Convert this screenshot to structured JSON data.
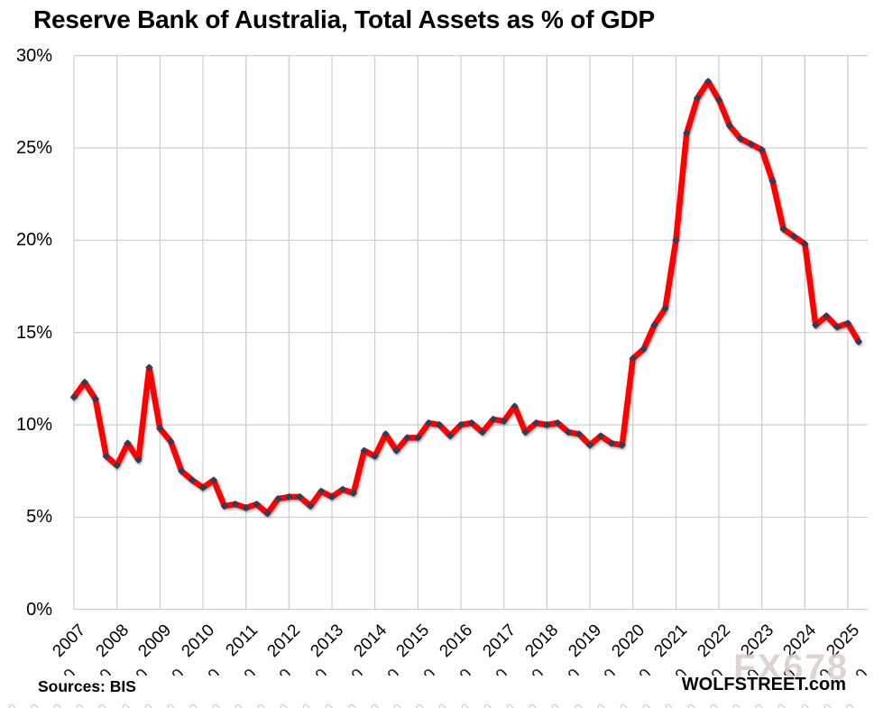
{
  "title": "Reserve Bank of Australia, Total Assets as % of GDP",
  "footer": {
    "sources": "Sources: BIS",
    "brand": "WOLFSTREET.com"
  },
  "watermark": "FX678",
  "colors": {
    "line": "#FE0000",
    "marker": "#2D3E58",
    "grid": "#C9C9C9",
    "text": "#000000",
    "watermark": "#D9CEC8"
  },
  "y_axis": {
    "min": 0,
    "max": 30,
    "ticks": [
      {
        "label": "30%",
        "value": 30
      },
      {
        "label": "25%",
        "value": 25
      },
      {
        "label": "20%",
        "value": 20
      },
      {
        "label": "15%",
        "value": 15
      },
      {
        "label": "10%",
        "value": 10
      },
      {
        "label": "5%",
        "value": 5
      },
      {
        "label": "0%",
        "value": 0
      }
    ]
  },
  "x_axis": {
    "years": [
      2007,
      2008,
      2009,
      2010,
      2011,
      2012,
      2013,
      2014,
      2015,
      2016,
      2017,
      2018,
      2019,
      2020,
      2021,
      2022,
      2023,
      2024,
      2025
    ]
  },
  "chart_data": {
    "type": "line",
    "title": "Reserve Bank of Australia, Total Assets as % of GDP",
    "frequency": "quarterly",
    "x_start": "2007-Q1",
    "x_end": "2025-Q2",
    "unit": "% of GDP",
    "ylim": [
      0,
      30
    ],
    "grid": true,
    "legend": "none",
    "series": [
      {
        "name": "RBA Total Assets as % of GDP",
        "color": "#FE0000",
        "marker": "diamond",
        "marker_color": "#2D3E58",
        "values": [
          11.5,
          12.3,
          11.4,
          8.3,
          7.8,
          9.0,
          8.1,
          13.1,
          9.8,
          9.1,
          7.5,
          7.0,
          6.6,
          7.0,
          5.6,
          5.7,
          5.5,
          5.7,
          5.2,
          6.0,
          6.1,
          6.1,
          5.6,
          6.4,
          6.1,
          6.5,
          6.3,
          8.6,
          8.3,
          9.5,
          8.6,
          9.3,
          9.3,
          10.1,
          10.0,
          9.4,
          10.0,
          10.1,
          9.6,
          10.3,
          10.2,
          11.0,
          9.6,
          10.1,
          10.0,
          10.1,
          9.6,
          9.5,
          8.9,
          9.4,
          9.0,
          8.9,
          13.6,
          14.1,
          15.4,
          16.3,
          20.0,
          25.8,
          27.7,
          28.6,
          27.6,
          26.2,
          25.5,
          25.2,
          24.9,
          23.2,
          20.6,
          20.2,
          19.8,
          15.4,
          15.9,
          15.3,
          15.5,
          14.5
        ]
      }
    ]
  }
}
